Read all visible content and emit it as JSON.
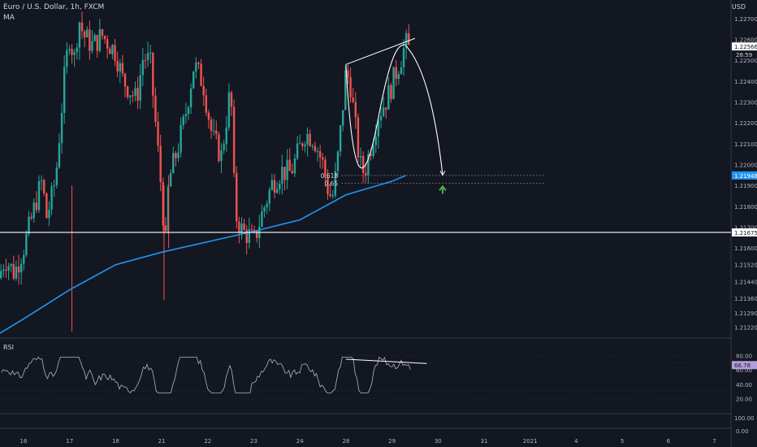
{
  "header": {
    "symbol_line": "Euro / U.S. Dollar, 1h, FXCM",
    "indicator": "MA",
    "currency": "USD"
  },
  "price_pane": {
    "ylim": [
      1.2118,
      1.2275
    ],
    "ticks": [
      "1.22700",
      "1.22600",
      "1.22500",
      "1.22400",
      "1.22300",
      "1.22200",
      "1.22100",
      "1.22000",
      "1.21900",
      "1.21800",
      "1.21700",
      "1.21600",
      "1.21520",
      "1.21440",
      "1.21360",
      "1.21290",
      "1.21220"
    ],
    "tick_values": [
      1.227,
      1.226,
      1.225,
      1.224,
      1.223,
      1.222,
      1.221,
      1.22,
      1.219,
      1.218,
      1.217,
      1.216,
      1.2152,
      1.2144,
      1.2136,
      1.2129,
      1.2122
    ],
    "last_price": "1.22566",
    "last_price_value": 1.22566,
    "countdown": "28:59",
    "ma_value_label": "1.21948",
    "ma_value": 1.21948,
    "support_label": "1.21675",
    "support_value": 1.21675,
    "fib": [
      {
        "label": "0.618",
        "value": 1.21948
      },
      {
        "label": "0.65",
        "value": 1.2191
      }
    ]
  },
  "rsi_pane": {
    "title": "RSI",
    "ylim": [
      0,
      100
    ],
    "ticks": [
      "80.00",
      "60.00",
      "40.00",
      "20.00"
    ],
    "tick_values": [
      80,
      60,
      40,
      20
    ],
    "current": "66.78",
    "current_value": 66.78
  },
  "third_pane": {
    "ticks": [
      "100.00",
      "0.00"
    ]
  },
  "x_axis": {
    "labels": [
      "16",
      "17",
      "18",
      "21",
      "22",
      "23",
      "24",
      "28",
      "29",
      "30",
      "31",
      "2021",
      "4",
      "5",
      "6",
      "7"
    ],
    "positions": [
      0,
      1,
      2,
      3,
      4,
      5,
      6,
      7,
      8,
      9,
      10,
      11,
      12,
      13,
      14,
      15
    ]
  },
  "colors": {
    "up": "#26a69a",
    "down": "#ef5350",
    "ma": "#2196f3",
    "support": "#ffffff",
    "rsi": "#b2b5be",
    "last_price": "#ffffff",
    "ma_label": "#2196f3",
    "rsi_label": "#b39ddb",
    "arrow": "#4caf50"
  },
  "chart_data": {
    "type": "candlestick",
    "pair": "Euro / U.S. Dollar",
    "timeframe": "1h",
    "source": "FXCM",
    "x_unit": "day index (0 = 16)",
    "close_path": [
      [
        -0.6,
        1.2142
      ],
      [
        -0.4,
        1.2155
      ],
      [
        -0.2,
        1.2148
      ],
      [
        0.0,
        1.216
      ],
      [
        0.15,
        1.2172
      ],
      [
        0.3,
        1.2185
      ],
      [
        0.4,
        1.2192
      ],
      [
        0.5,
        1.2175
      ],
      [
        0.6,
        1.2183
      ],
      [
        0.7,
        1.2194
      ],
      [
        0.8,
        1.222
      ],
      [
        0.9,
        1.2245
      ],
      [
        1.0,
        1.2262
      ],
      [
        1.1,
        1.225
      ],
      [
        1.2,
        1.227
      ],
      [
        1.3,
        1.2262
      ],
      [
        1.5,
        1.2257
      ],
      [
        1.7,
        1.2262
      ],
      [
        1.85,
        1.2258
      ],
      [
        2.0,
        1.2254
      ],
      [
        2.15,
        1.2241
      ],
      [
        2.3,
        1.2236
      ],
      [
        2.45,
        1.2231
      ],
      [
        2.6,
        1.2252
      ],
      [
        2.75,
        1.2249
      ],
      [
        2.9,
        1.2211
      ],
      [
        3.0,
        1.2186
      ],
      [
        3.08,
        1.216
      ],
      [
        3.15,
        1.2192
      ],
      [
        3.35,
        1.2208
      ],
      [
        3.5,
        1.2222
      ],
      [
        3.7,
        1.2248
      ],
      [
        3.9,
        1.2239
      ],
      [
        4.1,
        1.2213
      ],
      [
        4.3,
        1.2204
      ],
      [
        4.5,
        1.2238
      ],
      [
        4.55,
        1.22
      ],
      [
        4.6,
        1.2176
      ],
      [
        4.75,
        1.2168
      ],
      [
        4.9,
        1.2166
      ],
      [
        5.0,
        1.2163
      ],
      [
        5.2,
        1.2178
      ],
      [
        5.4,
        1.2191
      ],
      [
        5.6,
        1.2197
      ],
      [
        5.8,
        1.2196
      ],
      [
        6.0,
        1.2208
      ],
      [
        6.1,
        1.2215
      ],
      [
        6.3,
        1.2213
      ],
      [
        6.5,
        1.22
      ],
      [
        6.6,
        1.2189
      ],
      [
        6.7,
        1.2183
      ],
      [
        6.8,
        1.2198
      ],
      [
        6.9,
        1.222
      ],
      [
        7.0,
        1.2245
      ],
      [
        7.1,
        1.2238
      ],
      [
        7.2,
        1.2219
      ],
      [
        7.3,
        1.22
      ],
      [
        7.4,
        1.2196
      ],
      [
        7.55,
        1.221
      ],
      [
        7.7,
        1.2224
      ],
      [
        7.9,
        1.2232
      ],
      [
        8.1,
        1.2245
      ],
      [
        8.3,
        1.2258
      ],
      [
        8.4,
        1.2254
      ]
    ],
    "annotations": {
      "rising_wedge_top": [
        [
          7.0,
          1.2248
        ],
        [
          8.5,
          1.22605
        ]
      ],
      "projected_path": [
        [
          8.3,
          1.2257
        ],
        [
          8.55,
          1.2244
        ],
        [
          8.85,
          1.2212
        ],
        [
          9.1,
          1.2195
        ]
      ],
      "u_curve": [
        [
          7.0,
          1.2248
        ],
        [
          7.15,
          1.2199
        ],
        [
          7.4,
          1.2197
        ],
        [
          7.7,
          1.2222
        ],
        [
          8.3,
          1.22575
        ]
      ],
      "ma_points": [
        [
          -0.6,
          1.2118
        ],
        [
          0.0,
          1.2126
        ],
        [
          1.0,
          1.214
        ],
        [
          2.0,
          1.2152
        ],
        [
          3.0,
          1.2158
        ],
        [
          4.0,
          1.2163
        ],
        [
          5.0,
          1.2168
        ],
        [
          6.0,
          1.21735
        ],
        [
          7.0,
          1.21855
        ],
        [
          8.0,
          1.2192
        ],
        [
          8.3,
          1.21948
        ]
      ],
      "arrow_up_at": [
        9.1,
        1.2188
      ]
    },
    "rsi": {
      "range": [
        20,
        80
      ],
      "end_value": 66.78,
      "line_top": [
        [
          7.0,
          75
        ],
        [
          8.4,
          69
        ]
      ]
    }
  }
}
